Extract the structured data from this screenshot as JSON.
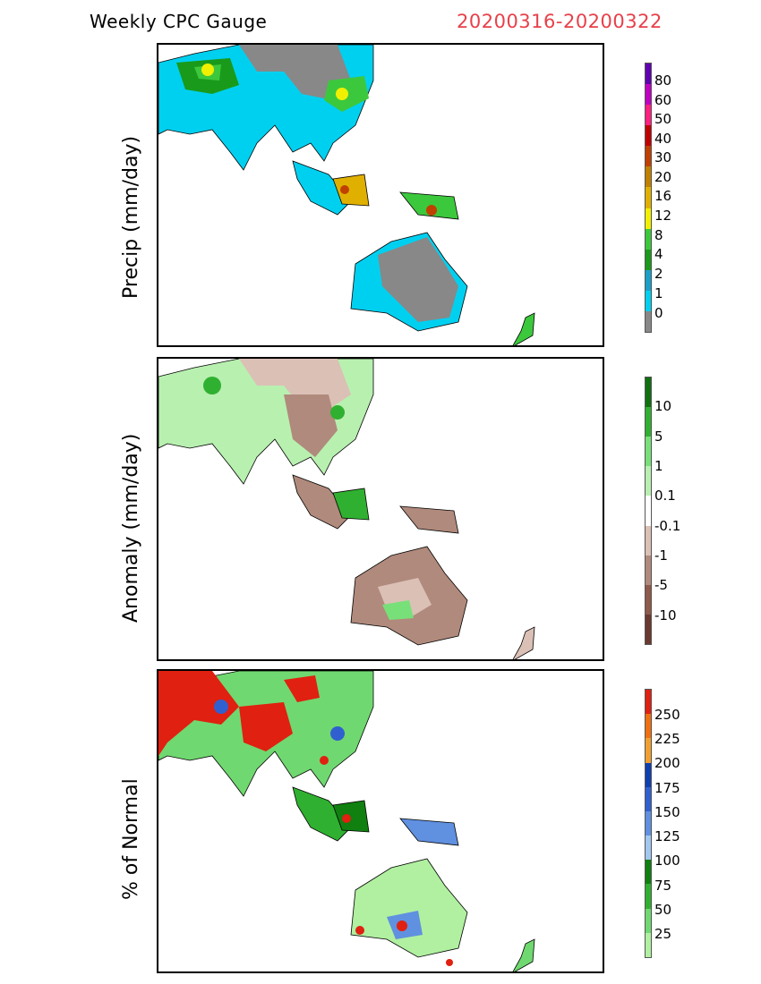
{
  "header": {
    "title": "Weekly CPC Gauge",
    "date_range": "20200316-20200322",
    "date_color": "#e8404a"
  },
  "panels": [
    {
      "id": "precip",
      "ylabel": "Precip (mm/day)",
      "colorbar": {
        "colors": [
          "#888888",
          "#00d0f0",
          "#1aa0c8",
          "#1a9a1a",
          "#3cc83c",
          "#f0f000",
          "#e0b000",
          "#c08000",
          "#c04000",
          "#c00000",
          "#ff2080",
          "#c000c0",
          "#6000b0"
        ],
        "labels": [
          "0",
          "1",
          "2",
          "4",
          "8",
          "12",
          "16",
          "20",
          "30",
          "40",
          "50",
          "60",
          "80"
        ]
      }
    },
    {
      "id": "anomaly",
      "ylabel": "Anomaly (mm/day)",
      "colorbar": {
        "colors": [
          "#6a3a30",
          "#8e5a4a",
          "#b08a7c",
          "#dbc0b6",
          "#ffffff",
          "#b8f0b0",
          "#78e078",
          "#30b030",
          "#107010"
        ],
        "labels": [
          "-10",
          "-5",
          "-1",
          "-0.1",
          "0.1",
          "1",
          "5",
          "10"
        ]
      }
    },
    {
      "id": "percent",
      "ylabel": "% of Normal",
      "colorbar": {
        "colors": [
          "#b0f0a0",
          "#70d870",
          "#30b030",
          "#108010",
          "#a0c8f0",
          "#6090e0",
          "#3060d0",
          "#1040b0",
          "#f0a030",
          "#f07010",
          "#e02010"
        ],
        "labels": [
          "25",
          "50",
          "75",
          "100",
          "125",
          "150",
          "175",
          "200",
          "225",
          "250"
        ]
      }
    }
  ]
}
